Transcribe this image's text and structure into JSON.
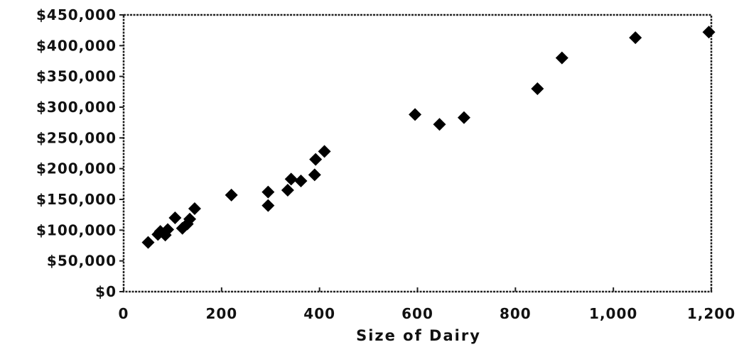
{
  "chart_data": {
    "type": "scatter",
    "title": "",
    "xlabel": "Size of Dairy",
    "ylabel": "",
    "xlim": [
      0,
      1200
    ],
    "ylim": [
      0,
      450000
    ],
    "grid": false,
    "legend": "none",
    "x_ticks": [
      {
        "value": 0,
        "label": "0"
      },
      {
        "value": 200,
        "label": "200"
      },
      {
        "value": 400,
        "label": "400"
      },
      {
        "value": 600,
        "label": "600"
      },
      {
        "value": 800,
        "label": "800"
      },
      {
        "value": 1000,
        "label": "1,000"
      },
      {
        "value": 1200,
        "label": "1,200"
      }
    ],
    "y_ticks": [
      {
        "value": 0,
        "label": "$0"
      },
      {
        "value": 50000,
        "label": "$50,000"
      },
      {
        "value": 100000,
        "label": "$100,000"
      },
      {
        "value": 150000,
        "label": "$150,000"
      },
      {
        "value": 200000,
        "label": "$200,000"
      },
      {
        "value": 250000,
        "label": "$250,000"
      },
      {
        "value": 300000,
        "label": "$300,000"
      },
      {
        "value": 350000,
        "label": "$350,000"
      },
      {
        "value": 400000,
        "label": "$400,000"
      },
      {
        "value": 450000,
        "label": "$450,000"
      }
    ],
    "marker": "diamond",
    "marker_color": "#000000",
    "points": [
      {
        "x": 50,
        "y": 80000
      },
      {
        "x": 70,
        "y": 93000
      },
      {
        "x": 75,
        "y": 98000
      },
      {
        "x": 85,
        "y": 92000
      },
      {
        "x": 90,
        "y": 101000
      },
      {
        "x": 105,
        "y": 120000
      },
      {
        "x": 120,
        "y": 103000
      },
      {
        "x": 130,
        "y": 110000
      },
      {
        "x": 135,
        "y": 118000
      },
      {
        "x": 145,
        "y": 135000
      },
      {
        "x": 220,
        "y": 157000
      },
      {
        "x": 295,
        "y": 140000
      },
      {
        "x": 295,
        "y": 162000
      },
      {
        "x": 335,
        "y": 165000
      },
      {
        "x": 342,
        "y": 183000
      },
      {
        "x": 362,
        "y": 180000
      },
      {
        "x": 390,
        "y": 190000
      },
      {
        "x": 392,
        "y": 215000
      },
      {
        "x": 410,
        "y": 228000
      },
      {
        "x": 595,
        "y": 288000
      },
      {
        "x": 645,
        "y": 272000
      },
      {
        "x": 695,
        "y": 283000
      },
      {
        "x": 845,
        "y": 330000
      },
      {
        "x": 895,
        "y": 380000
      },
      {
        "x": 1045,
        "y": 413000
      },
      {
        "x": 1195,
        "y": 422000
      }
    ]
  }
}
